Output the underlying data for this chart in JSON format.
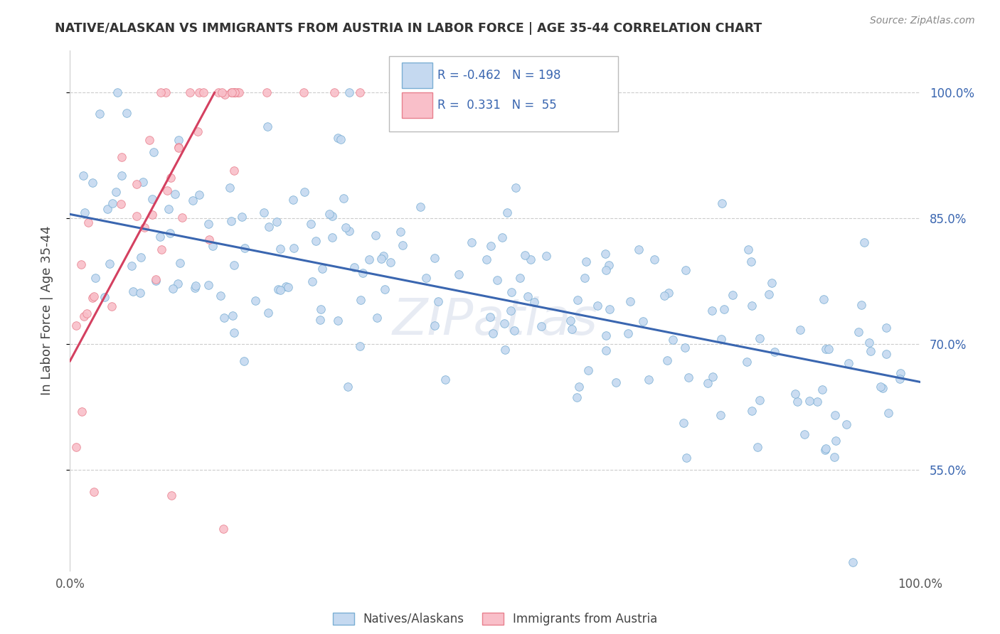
{
  "title": "NATIVE/ALASKAN VS IMMIGRANTS FROM AUSTRIA IN LABOR FORCE | AGE 35-44 CORRELATION CHART",
  "source": "Source: ZipAtlas.com",
  "ylabel_label": "In Labor Force | Age 35-44",
  "legend_label1": "Natives/Alaskans",
  "legend_label2": "Immigrants from Austria",
  "R1": "-0.462",
  "N1": "198",
  "R2": "0.331",
  "N2": "55",
  "blue_fill": "#c5d9f0",
  "blue_edge": "#7bafd4",
  "pink_fill": "#f9bfc9",
  "pink_edge": "#e8808e",
  "blue_line_color": "#3a66b0",
  "pink_line_color": "#d44060",
  "title_color": "#333333",
  "stat_color": "#3a66b0",
  "source_color": "#888888",
  "background_color": "#ffffff",
  "grid_color": "#cccccc",
  "tick_color": "#3a66b0",
  "ytick_vals": [
    0.55,
    0.7,
    0.85,
    1.0
  ],
  "xmin": 0.0,
  "xmax": 1.0,
  "ymin": 0.43,
  "ymax": 1.05,
  "blue_trend_x0": 0.0,
  "blue_trend_y0": 0.855,
  "blue_trend_x1": 1.0,
  "blue_trend_y1": 0.655,
  "pink_trend_x0": 0.0,
  "pink_trend_y0": 0.68,
  "pink_trend_x1": 0.17,
  "pink_trend_y1": 1.0
}
